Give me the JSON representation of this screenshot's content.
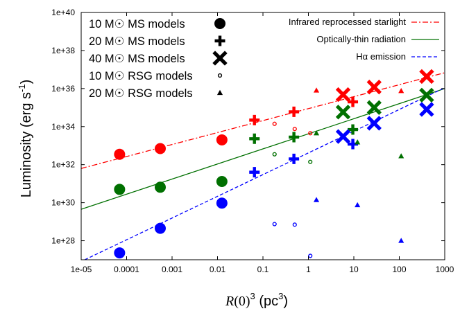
{
  "chart_data": {
    "type": "scatter",
    "xscale": "log",
    "yscale": "log",
    "xlim": [
      1e-05,
      1000
    ],
    "ylim": [
      1e+27,
      1e+40
    ],
    "xlabel": "R(0)3 (pc3)",
    "xlabel_parts": {
      "var": "R",
      "mid": "(0)",
      "sup1": "3",
      "rest": " (pc",
      "sup2": "3",
      "end": ")"
    },
    "ylabel": "Luminosity (erg s-1)",
    "ylabel_parts": {
      "main": "Luminosity (erg s",
      "sup": "-1",
      "end": ")"
    },
    "xticks": [
      {
        "value": 1e-05,
        "label": "1e-05"
      },
      {
        "value": 0.0001,
        "label": "0.0001"
      },
      {
        "value": 0.001,
        "label": "0.001"
      },
      {
        "value": 0.01,
        "label": "0.01"
      },
      {
        "value": 0.1,
        "label": "0.1"
      },
      {
        "value": 1,
        "label": "1"
      },
      {
        "value": 10,
        "label": "10"
      },
      {
        "value": 100,
        "label": "100"
      },
      {
        "value": 1000,
        "label": "1000"
      }
    ],
    "yticks": [
      {
        "value": 1e+28,
        "label": "1e+28"
      },
      {
        "value": 1e+30,
        "label": "1e+30"
      },
      {
        "value": 1e+32,
        "label": "1e+32"
      },
      {
        "value": 1e+34,
        "label": "1e+34"
      },
      {
        "value": 1e+36,
        "label": "1e+36"
      },
      {
        "value": 1e+38,
        "label": "1e+38"
      },
      {
        "value": 1e+40,
        "label": "1e+40"
      }
    ],
    "grid": false,
    "colors": {
      "infrared": "#ff0000",
      "optical": "#007000",
      "halpha": "#0000ff"
    },
    "marker_legend": [
      {
        "mass": "10",
        "label": " MS   models",
        "marker": "circle"
      },
      {
        "mass": "20",
        "label": " MS   models",
        "marker": "plus"
      },
      {
        "mass": "40",
        "label": " MS   models",
        "marker": "xcross"
      },
      {
        "mass": "10",
        "label": " RSG models",
        "marker": "smallcircle"
      },
      {
        "mass": "20",
        "label": " RSG models",
        "marker": "triangle"
      }
    ],
    "msun_symbol": "M☉",
    "line_legend": [
      {
        "label": "Infrared reprocessed starlight",
        "color": "#ff0000",
        "dash": "dashdot"
      },
      {
        "label": "Optically-thin radiation",
        "color": "#007000",
        "dash": "solid"
      },
      {
        "label": "Hα emission",
        "color": "#0000ff",
        "dash": "dash"
      }
    ],
    "fit_lines": [
      {
        "name": "Infrared reprocessed starlight",
        "color": "#ff0000",
        "dash": "dashdot",
        "x": [
          1e-05,
          1000
        ],
        "y": [
          6.3e+31,
          6.8e+36
        ]
      },
      {
        "name": "Optically-thin radiation",
        "color": "#007000",
        "dash": "solid",
        "x": [
          1e-05,
          1000
        ],
        "y": [
          4.5e+29,
          1e+36
        ]
      },
      {
        "name": "Hα emission",
        "color": "#0000ff",
        "dash": "dash",
        "x": [
          1.2e-05,
          1000
        ],
        "y": [
          1e+27,
          1.1e+36
        ]
      }
    ],
    "series": [
      {
        "name": "10 M☉ MS models",
        "marker": "circle",
        "points": [
          {
            "x": 7e-05,
            "y": 3.5e+32,
            "c": "infrared"
          },
          {
            "x": 0.00055,
            "y": 7e+32,
            "c": "infrared"
          },
          {
            "x": 0.0125,
            "y": 2e+33,
            "c": "infrared"
          },
          {
            "x": 7e-05,
            "y": 5e+30,
            "c": "optical"
          },
          {
            "x": 0.00055,
            "y": 6.5e+30,
            "c": "optical"
          },
          {
            "x": 0.0125,
            "y": 1.3e+31,
            "c": "optical"
          },
          {
            "x": 7e-05,
            "y": 2.3e+27,
            "c": "halpha"
          },
          {
            "x": 0.00055,
            "y": 4.5e+28,
            "c": "halpha"
          },
          {
            "x": 0.0125,
            "y": 9.5e+29,
            "c": "halpha"
          }
        ]
      },
      {
        "name": "20 M☉ MS models",
        "marker": "plus",
        "points": [
          {
            "x": 0.065,
            "y": 2.2e+34,
            "c": "infrared"
          },
          {
            "x": 0.48,
            "y": 6e+34,
            "c": "infrared"
          },
          {
            "x": 9.5,
            "y": 2e+35,
            "c": "infrared"
          },
          {
            "x": 0.065,
            "y": 2.3e+33,
            "c": "optical"
          },
          {
            "x": 0.48,
            "y": 2.8e+33,
            "c": "optical"
          },
          {
            "x": 9.5,
            "y": 7e+33,
            "c": "optical"
          },
          {
            "x": 0.065,
            "y": 4e+31,
            "c": "halpha"
          },
          {
            "x": 0.48,
            "y": 2e+32,
            "c": "halpha"
          },
          {
            "x": 9.5,
            "y": 1.2e+33,
            "c": "halpha"
          }
        ]
      },
      {
        "name": "40 M☉ MS models",
        "marker": "xcross",
        "points": [
          {
            "x": 5.8,
            "y": 4.8e+35,
            "c": "infrared"
          },
          {
            "x": 28,
            "y": 1.2e+36,
            "c": "infrared"
          },
          {
            "x": 400,
            "y": 4.3e+36,
            "c": "infrared"
          },
          {
            "x": 5.8,
            "y": 5.8e+34,
            "c": "optical"
          },
          {
            "x": 28,
            "y": 1e+35,
            "c": "optical"
          },
          {
            "x": 400,
            "y": 4.5e+35,
            "c": "optical"
          },
          {
            "x": 5.8,
            "y": 3e+33,
            "c": "halpha"
          },
          {
            "x": 28,
            "y": 1.5e+34,
            "c": "halpha"
          },
          {
            "x": 400,
            "y": 8e+34,
            "c": "halpha"
          }
        ]
      },
      {
        "name": "10 M☉ RSG models",
        "marker": "smallcircle",
        "points": [
          {
            "x": 0.18,
            "y": 1.4e+34,
            "c": "infrared"
          },
          {
            "x": 0.5,
            "y": 7.5e+33,
            "c": "infrared"
          },
          {
            "x": 1.1,
            "y": 4.5e+33,
            "c": "infrared"
          },
          {
            "x": 0.18,
            "y": 3.5e+32,
            "c": "optical"
          },
          {
            "x": 1.1,
            "y": 1.4e+32,
            "c": "optical"
          },
          {
            "x": 0.18,
            "y": 7.5e+28,
            "c": "halpha"
          },
          {
            "x": 0.5,
            "y": 7e+28,
            "c": "halpha"
          },
          {
            "x": 1.1,
            "y": 1.6e+27,
            "c": "halpha"
          }
        ]
      },
      {
        "name": "20 M☉ RSG models",
        "marker": "triangle",
        "points": [
          {
            "x": 1.5,
            "y": 8e+35,
            "c": "infrared"
          },
          {
            "x": 110,
            "y": 7.5e+35,
            "c": "infrared"
          },
          {
            "x": 1.5,
            "y": 4.5e+33,
            "c": "optical"
          },
          {
            "x": 12,
            "y": 1.5e+33,
            "c": "optical"
          },
          {
            "x": 110,
            "y": 2.8e+32,
            "c": "optical"
          },
          {
            "x": 1.5,
            "y": 1.4e+30,
            "c": "halpha"
          },
          {
            "x": 12,
            "y": 7.5e+29,
            "c": "halpha"
          },
          {
            "x": 110,
            "y": 1e+28,
            "c": "halpha"
          }
        ]
      }
    ]
  }
}
